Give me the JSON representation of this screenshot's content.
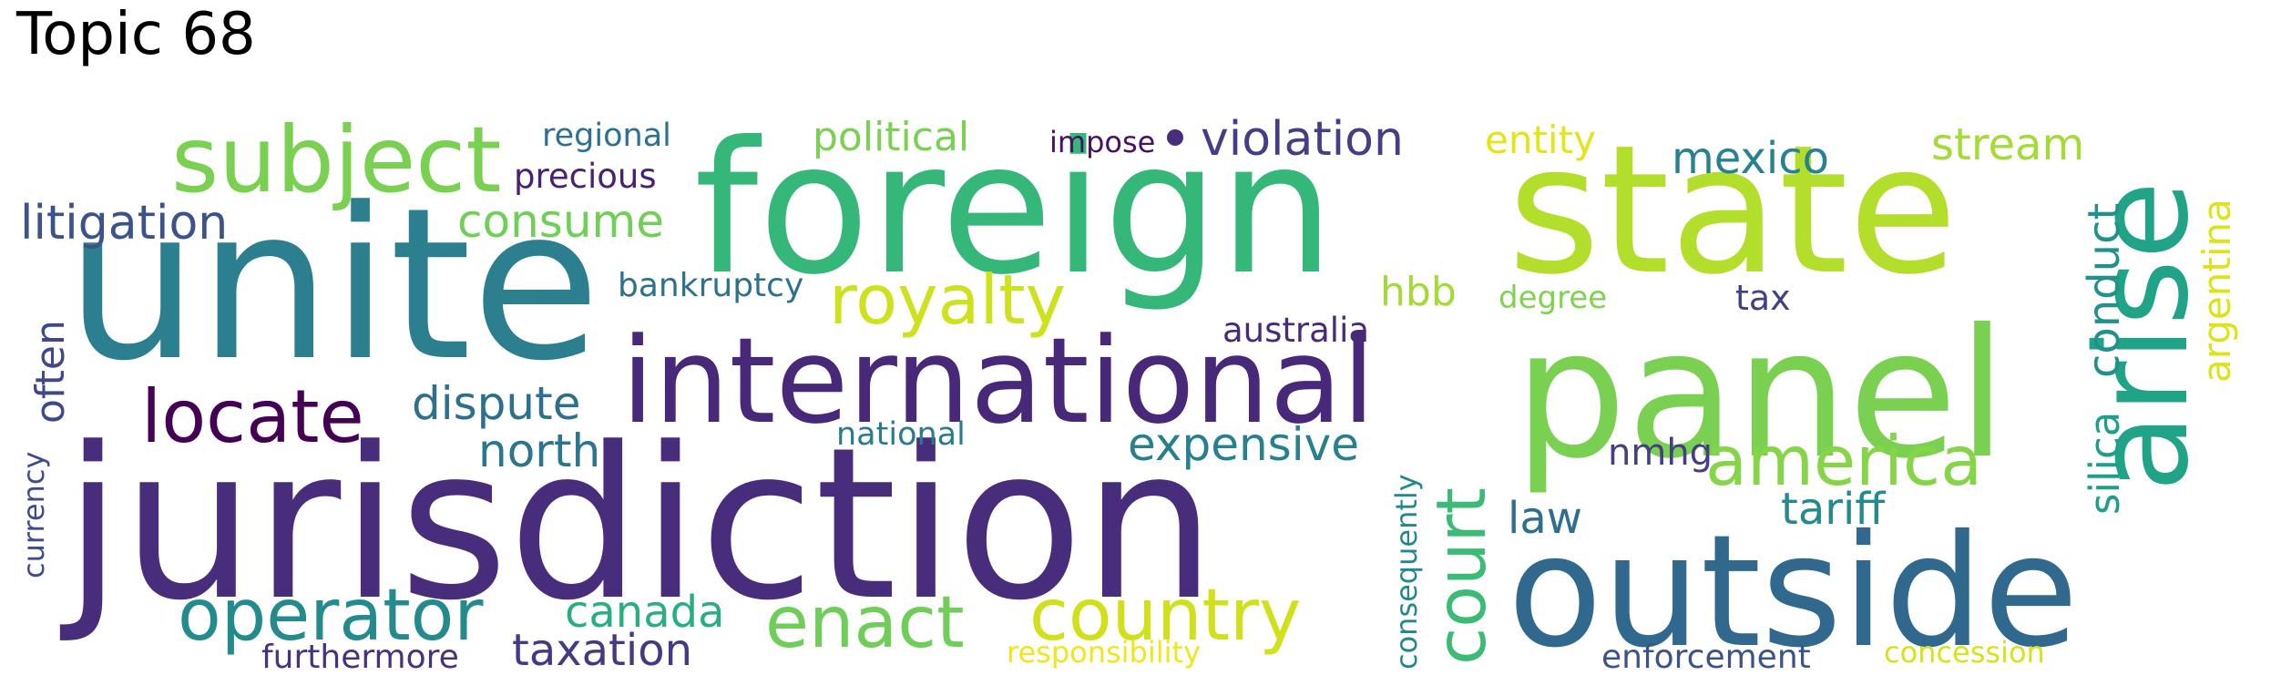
{
  "title": "Topic 68",
  "words": [
    {
      "text": "jurisdiction",
      "color": "#472d7b"
    },
    {
      "text": "unite",
      "color": "#2c7f8e"
    },
    {
      "text": "foreign",
      "color": "#35b779"
    },
    {
      "text": "state",
      "color": "#b4de2c"
    },
    {
      "text": "panel",
      "color": "#7ad151"
    },
    {
      "text": "outside",
      "color": "#31688e"
    },
    {
      "text": "international",
      "color": "#482878"
    },
    {
      "text": "arise",
      "color": "#20a386"
    },
    {
      "text": "subject",
      "color": "#7ad151"
    },
    {
      "text": "locate",
      "color": "#440154"
    },
    {
      "text": "operator",
      "color": "#238a8d"
    },
    {
      "text": "enact",
      "color": "#6ece58"
    },
    {
      "text": "country",
      "color": "#d0e11c"
    },
    {
      "text": "royalty",
      "color": "#cde11d"
    },
    {
      "text": "america",
      "color": "#86d549"
    },
    {
      "text": "court",
      "color": "#3bbb75"
    },
    {
      "text": "violation",
      "color": "#433e85"
    },
    {
      "text": "litigation",
      "color": "#3b528b"
    },
    {
      "text": "consume",
      "color": "#70cf57"
    },
    {
      "text": "dispute",
      "color": "#2d708e"
    },
    {
      "text": "expensive",
      "color": "#27808e"
    },
    {
      "text": "north",
      "color": "#2a768e"
    },
    {
      "text": "canada",
      "color": "#28ae80"
    },
    {
      "text": "taxation",
      "color": "#443a83"
    },
    {
      "text": "mexico",
      "color": "#26828e"
    },
    {
      "text": "stream",
      "color": "#a5db36"
    },
    {
      "text": "tariff",
      "color": "#238a8d"
    },
    {
      "text": "law",
      "color": "#2e6e8e"
    },
    {
      "text": "political",
      "color": "#7ad151"
    },
    {
      "text": "hbb",
      "color": "#a2da37"
    },
    {
      "text": "conduct",
      "color": "#21918c"
    },
    {
      "text": "silica",
      "color": "#1f9e89"
    },
    {
      "text": "argentina",
      "color": "#dde318"
    },
    {
      "text": "often",
      "color": "#3f4889"
    },
    {
      "text": "entity",
      "color": "#e5e419"
    },
    {
      "text": "bankruptcy",
      "color": "#2c718e"
    },
    {
      "text": "australia",
      "color": "#472a7a"
    },
    {
      "text": "precious",
      "color": "#482173"
    },
    {
      "text": "regional",
      "color": "#2c718e"
    },
    {
      "text": "impose",
      "color": "#471063"
    },
    {
      "text": "national",
      "color": "#297b8e"
    },
    {
      "text": "nmhg",
      "color": "#433e85"
    },
    {
      "text": "tax",
      "color": "#424086"
    },
    {
      "text": "degree",
      "color": "#7fd34e"
    },
    {
      "text": "currency",
      "color": "#3e4c8a"
    },
    {
      "text": "consequently",
      "color": "#23888e"
    },
    {
      "text": "furthermore",
      "color": "#46327e"
    },
    {
      "text": "responsibility",
      "color": "#f1e51d"
    },
    {
      "text": "enforcement",
      "color": "#3b528b"
    },
    {
      "text": "concession",
      "color": "#d8e219"
    }
  ]
}
